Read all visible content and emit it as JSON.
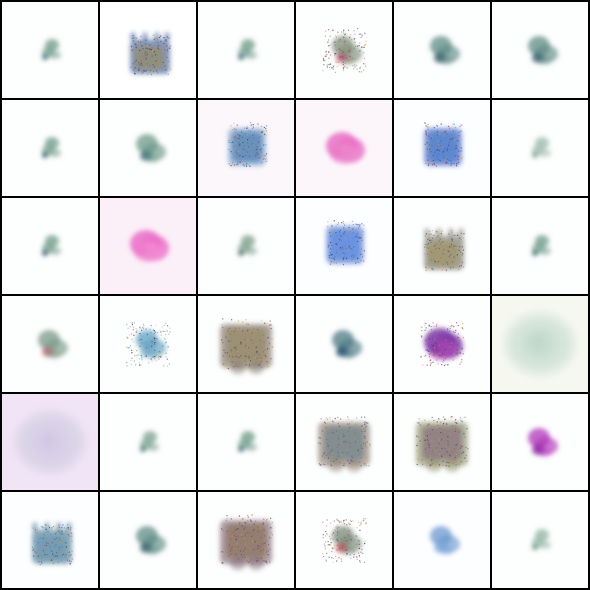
{
  "grid": {
    "rows": 6,
    "cols": 6,
    "tiles": [
      {
        "bg": "#fdfefe",
        "color": "#6d9a88",
        "accent": "#3d6e7a",
        "shape": "small-blob",
        "texture": "soft"
      },
      {
        "bg": "#ffffff",
        "color": "#2b4f8f",
        "accent": "#a08a3a",
        "shape": "crown",
        "texture": "speckled"
      },
      {
        "bg": "#fdfefe",
        "color": "#6d9a88",
        "accent": "#3d6e7a",
        "shape": "small-blob",
        "texture": "soft"
      },
      {
        "bg": "#fdfefe",
        "color": "#7e8e78",
        "accent": "#c2506e",
        "shape": "mid-blob",
        "texture": "speckled"
      },
      {
        "bg": "#fdfefe",
        "color": "#5f8c86",
        "accent": "#3a5f6c",
        "shape": "mid-blob",
        "texture": "soft"
      },
      {
        "bg": "#fdfefe",
        "color": "#5f8c86",
        "accent": "#3a5f6c",
        "shape": "mid-blob",
        "texture": "soft"
      },
      {
        "bg": "#fdfefe",
        "color": "#6d9a88",
        "accent": "#2f5a6a",
        "shape": "small-blob",
        "texture": "soft"
      },
      {
        "bg": "#fdfefe",
        "color": "#6d9a88",
        "accent": "#3d6e7a",
        "shape": "mid-blob",
        "texture": "soft"
      },
      {
        "bg": "#fcf7fa",
        "color": "#5f92c6",
        "accent": "#3a6aa0",
        "shape": "square",
        "texture": "speckled"
      },
      {
        "bg": "#fcf6fa",
        "color": "#e870c6",
        "accent": "#f08ccf",
        "shape": "large-blob",
        "texture": "soft"
      },
      {
        "bg": "#fdfeff",
        "color": "#2948b8",
        "accent": "#3a78c8",
        "shape": "square",
        "texture": "speckled"
      },
      {
        "bg": "#fdfefe",
        "color": "#9ab8a8",
        "accent": "#7aa090",
        "shape": "small-blob",
        "texture": "soft"
      },
      {
        "bg": "#fdfefe",
        "color": "#6d9a88",
        "accent": "#2f5a6a",
        "shape": "small-blob",
        "texture": "soft"
      },
      {
        "bg": "#fbeff8",
        "color": "#ea6fc8",
        "accent": "#f38ed5",
        "shape": "large-blob",
        "texture": "soft"
      },
      {
        "bg": "#fdfefe",
        "color": "#7a9c88",
        "accent": "#4a6e72",
        "shape": "small-blob",
        "texture": "soft"
      },
      {
        "bg": "#fdfeff",
        "color": "#3366cc",
        "accent": "#4c7fe0",
        "shape": "square",
        "texture": "speckled"
      },
      {
        "bg": "#fdfefe",
        "color": "#6a6a5a",
        "accent": "#9a8a4a",
        "shape": "crown",
        "texture": "speckled"
      },
      {
        "bg": "#fdfefe",
        "color": "#6d9a88",
        "accent": "#3d6e7a",
        "shape": "small-blob",
        "texture": "soft"
      },
      {
        "bg": "#fdfefe",
        "color": "#7a9a88",
        "accent": "#b86a72",
        "shape": "mid-blob",
        "texture": "soft"
      },
      {
        "bg": "#fdfefe",
        "color": "#5d9fc0",
        "accent": "#7fb4cf",
        "shape": "mid-blob",
        "texture": "speckled"
      },
      {
        "bg": "#fdfefe",
        "color": "#6a5a4a",
        "accent": "#8a7a4a",
        "shape": "large-square",
        "texture": "speckled"
      },
      {
        "bg": "#fdfefe",
        "color": "#4d7a86",
        "accent": "#224a6a",
        "shape": "mid-blob",
        "texture": "soft"
      },
      {
        "bg": "#fdfefe",
        "color": "#7a3aa8",
        "accent": "#b048b0",
        "shape": "large-blob",
        "texture": "speckled"
      },
      {
        "bg": "#f6f8ef",
        "color": "#9cc4b4",
        "accent": "#b8d4c6",
        "shape": "haze",
        "texture": "soft"
      },
      {
        "bg": "#f1e4f6",
        "color": "#b0b8cc",
        "accent": "#d8c4e8",
        "shape": "haze",
        "texture": "soft"
      },
      {
        "bg": "#fdfefe",
        "color": "#7aa090",
        "accent": "#4a7078",
        "shape": "small-blob",
        "texture": "soft"
      },
      {
        "bg": "#fdfefe",
        "color": "#6d9a88",
        "accent": "#3d6e7a",
        "shape": "small-blob",
        "texture": "soft"
      },
      {
        "bg": "#fdfefe",
        "color": "#7a6a5a",
        "accent": "#4a6a7a",
        "shape": "large-square",
        "texture": "speckled"
      },
      {
        "bg": "#fdfefe",
        "color": "#7a7a4a",
        "accent": "#6a4a6a",
        "shape": "large-square",
        "texture": "speckled"
      },
      {
        "bg": "#fdfefe",
        "color": "#b034b8",
        "accent": "#8a2aa0",
        "shape": "mid-blob",
        "texture": "soft"
      },
      {
        "bg": "#fdfeff",
        "color": "#3a6e8c",
        "accent": "#5a90b0",
        "shape": "crown",
        "texture": "speckled"
      },
      {
        "bg": "#fdfefe",
        "color": "#5f8c86",
        "accent": "#3a5f6c",
        "shape": "mid-blob",
        "texture": "soft"
      },
      {
        "bg": "#fdfefe",
        "color": "#6a4a5a",
        "accent": "#7a5a3a",
        "shape": "large-square",
        "texture": "speckled"
      },
      {
        "bg": "#fdfefe",
        "color": "#7a8a7a",
        "accent": "#c04a5a",
        "shape": "mid-blob",
        "texture": "speckled"
      },
      {
        "bg": "#fdfeff",
        "color": "#6c9ad0",
        "accent": "#88b0e0",
        "shape": "mid-blob",
        "texture": "soft"
      },
      {
        "bg": "#fdfefe",
        "color": "#8fb4a2",
        "accent": "#6a9080",
        "shape": "small-blob",
        "texture": "soft"
      }
    ]
  }
}
